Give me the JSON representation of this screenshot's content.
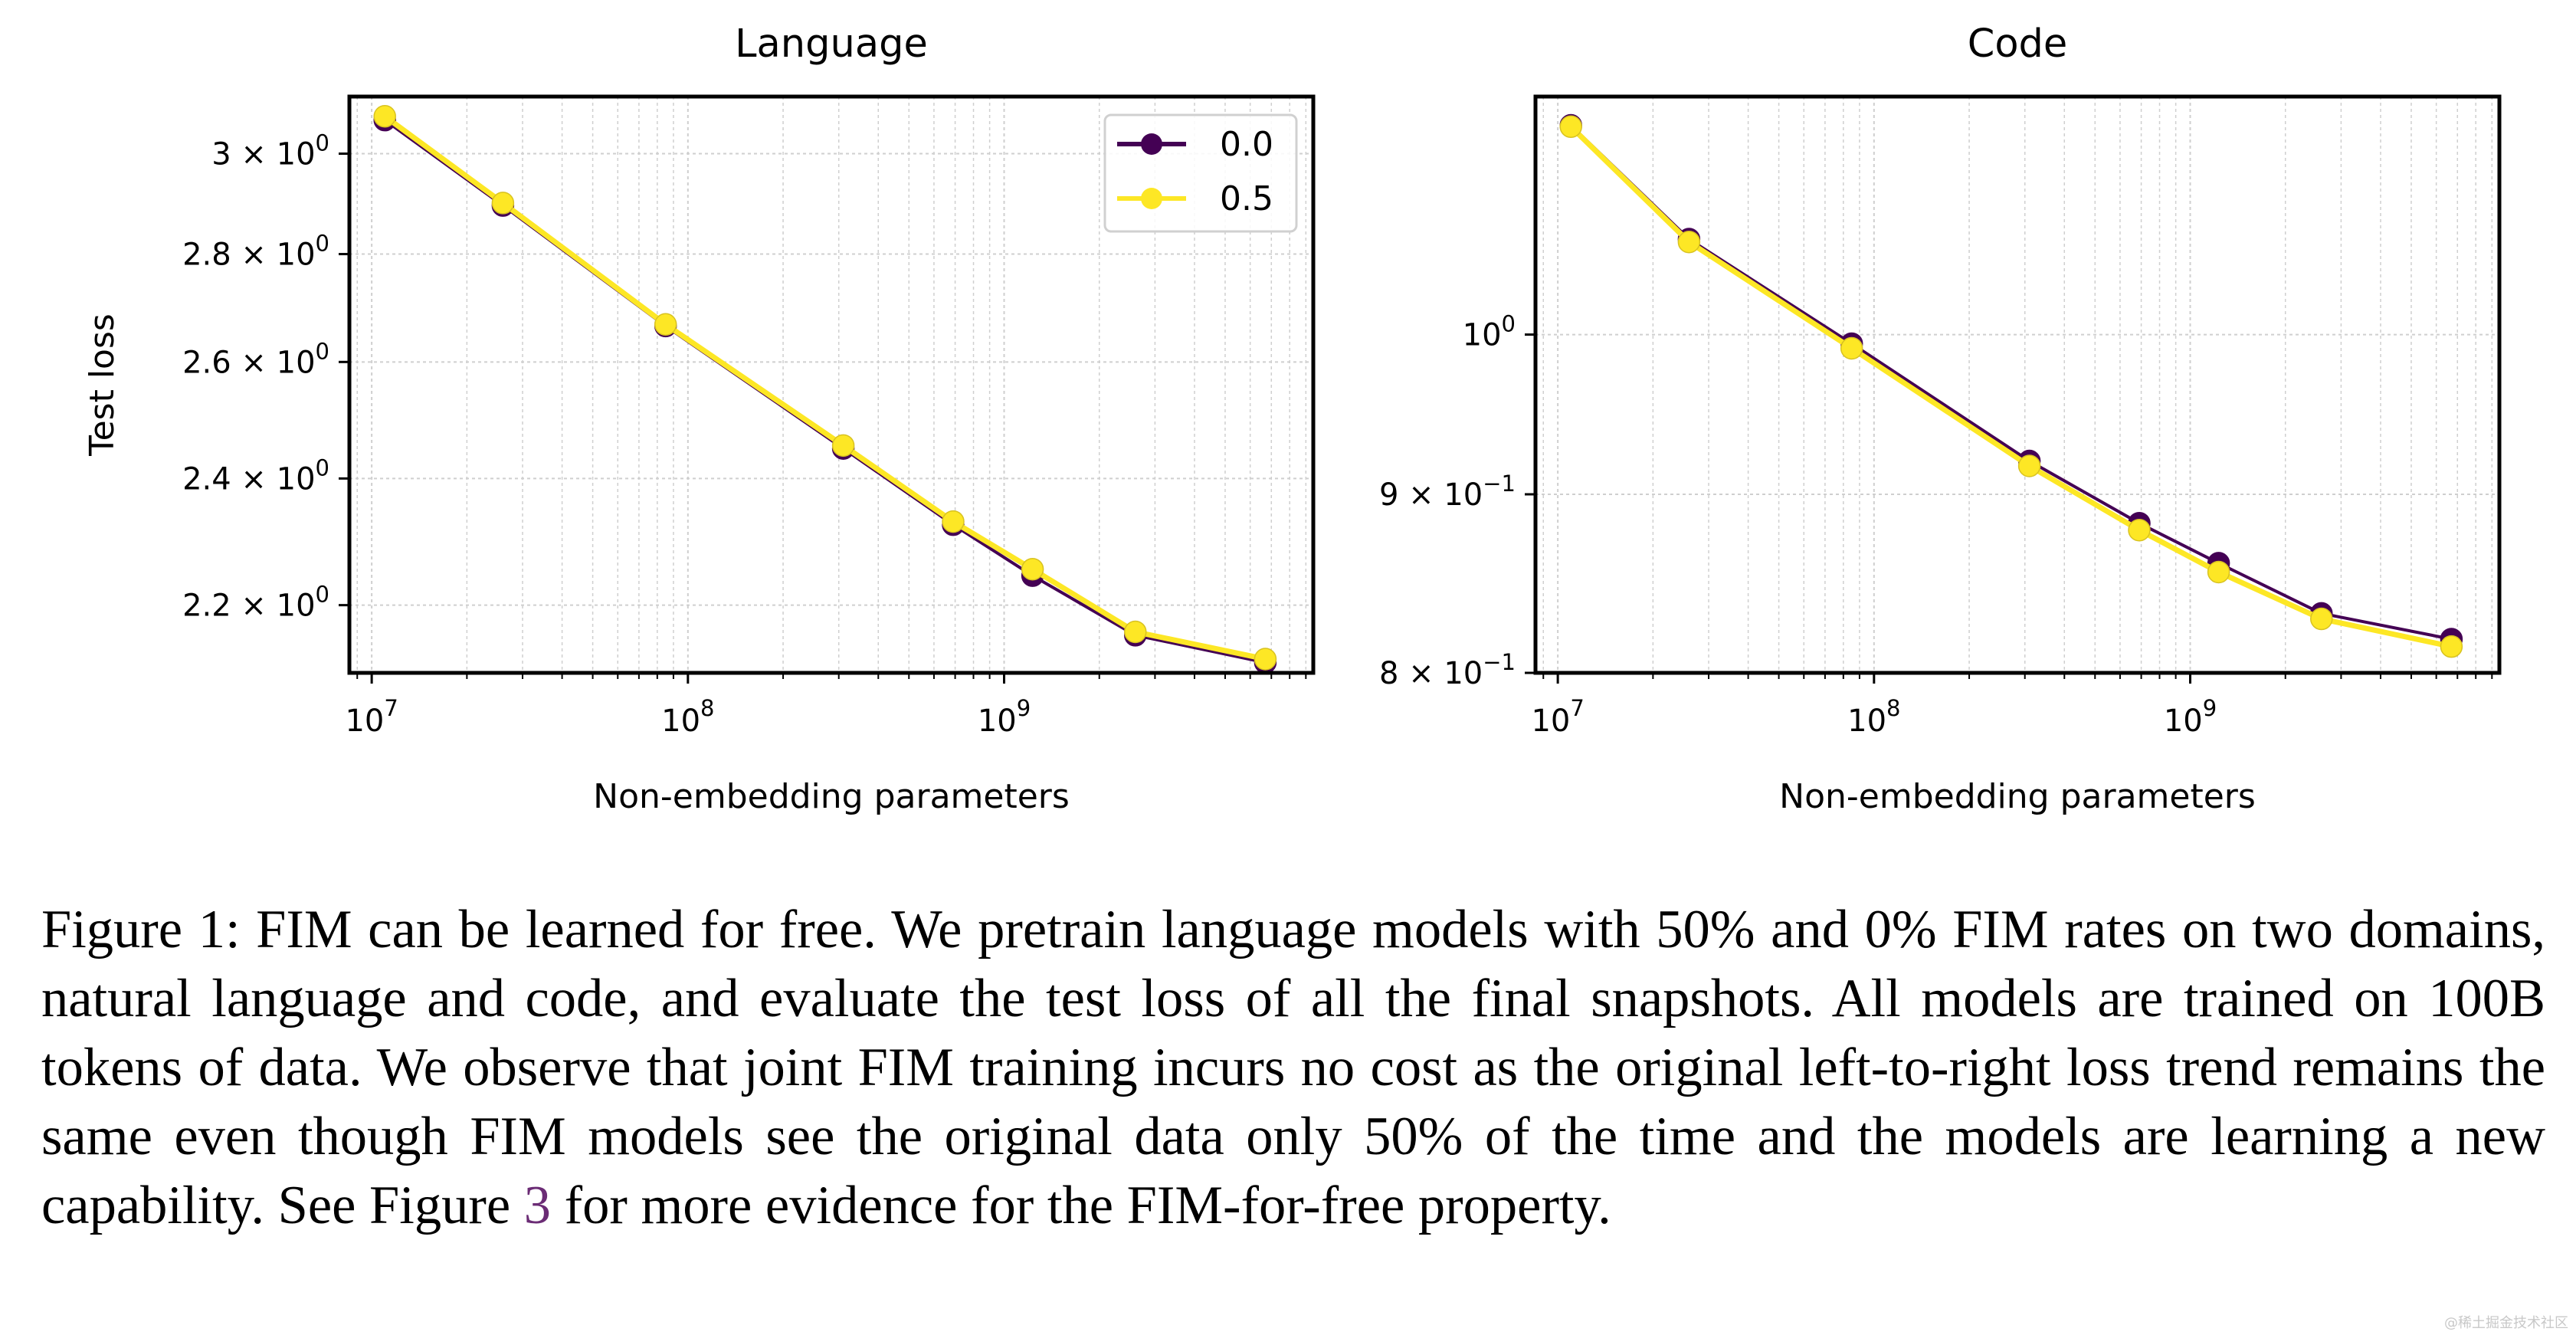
{
  "chart_data": [
    {
      "type": "line",
      "title": "Language",
      "xlabel": "Non-embedding parameters",
      "ylabel": "Test loss",
      "x_scale": "log",
      "y_scale": "log",
      "xlim": [
        8500000,
        9500000000
      ],
      "ylim": [
        2.1,
        3.12
      ],
      "x_ticks": [
        {
          "value": 10000000,
          "base": "10",
          "exp": "7"
        },
        {
          "value": 100000000,
          "base": "10",
          "exp": "8"
        },
        {
          "value": 1000000000,
          "base": "10",
          "exp": "9"
        }
      ],
      "y_ticks": [
        {
          "value": 3.0,
          "mant": "3 × 10",
          "exp": "0"
        },
        {
          "value": 2.8,
          "mant": "2.8 × 10",
          "exp": "0"
        },
        {
          "value": 2.6,
          "mant": "2.6 × 10",
          "exp": "0"
        },
        {
          "value": 2.4,
          "mant": "2.4 × 10",
          "exp": "0"
        },
        {
          "value": 2.2,
          "mant": "2.2 × 10",
          "exp": "0"
        }
      ],
      "grid": true,
      "legend": "top-right",
      "x": [
        11000000,
        26000000,
        85000000,
        310000000,
        690000000,
        1230000000,
        2600000000,
        6700000000
      ],
      "series": [
        {
          "name": "0.0",
          "color": "#440154",
          "values": [
            3.07,
            2.895,
            2.665,
            2.45,
            2.325,
            2.245,
            2.155,
            2.115
          ]
        },
        {
          "name": "0.5",
          "color": "#fde725",
          "values": [
            3.078,
            2.9,
            2.668,
            2.455,
            2.33,
            2.255,
            2.16,
            2.12
          ]
        }
      ]
    },
    {
      "type": "line",
      "title": "Code",
      "xlabel": "Non-embedding parameters",
      "ylabel": "",
      "x_scale": "log",
      "y_scale": "log",
      "xlim": [
        8500000,
        9500000000
      ],
      "ylim": [
        0.8,
        1.17
      ],
      "x_ticks": [
        {
          "value": 10000000,
          "base": "10",
          "exp": "7"
        },
        {
          "value": 100000000,
          "base": "10",
          "exp": "8"
        },
        {
          "value": 1000000000,
          "base": "10",
          "exp": "9"
        }
      ],
      "y_ticks": [
        {
          "value": 1.0,
          "mant": "10",
          "exp": "0"
        },
        {
          "value": 0.9,
          "mant": "9 × 10",
          "exp": "−1"
        },
        {
          "value": 0.8,
          "mant": "8 × 10",
          "exp": "−1"
        }
      ],
      "grid": true,
      "x": [
        11000000,
        26000000,
        85000000,
        310000000,
        690000000,
        1230000000,
        2600000000,
        6700000000
      ],
      "series": [
        {
          "name": "0.0",
          "color": "#440154",
          "values": [
            1.148,
            1.065,
            0.994,
            0.92,
            0.883,
            0.86,
            0.832,
            0.818
          ]
        },
        {
          "name": "0.5",
          "color": "#fde725",
          "values": [
            1.147,
            1.063,
            0.991,
            0.917,
            0.879,
            0.855,
            0.829,
            0.814
          ]
        }
      ]
    }
  ],
  "caption": {
    "text_before": "Figure 1: FIM can be learned for free. We pretrain language models with 50% and 0% FIM rates on two domains, natural language and code, and evaluate the test loss of all the final snapshots. All models are trained on 100B tokens of data. We observe that joint FIM training incurs no cost as the original left-to-right loss trend remains the same even though FIM models see the original data only 50% of the time and the models are learning a new capability. See Figure ",
    "ref": "3",
    "text_after": " for more evidence for the FIM-for-free property."
  },
  "watermark": "@稀土掘金技术社区"
}
